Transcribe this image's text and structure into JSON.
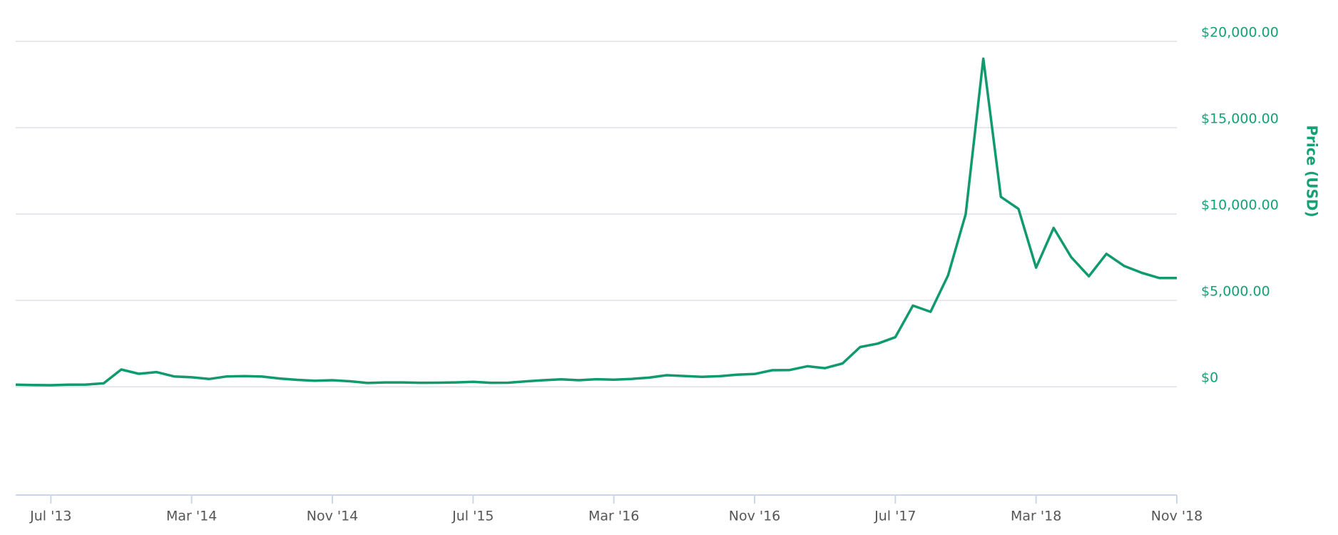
{
  "chart_data": {
    "type": "line",
    "y_axis_label": "Price (USD)",
    "color": "#109a6e",
    "grid": true,
    "y_axis_side": "right",
    "x": [
      "2013-05",
      "2013-06",
      "2013-07",
      "2013-08",
      "2013-09",
      "2013-10",
      "2013-11",
      "2013-12",
      "2014-01",
      "2014-02",
      "2014-03",
      "2014-04",
      "2014-05",
      "2014-06",
      "2014-07",
      "2014-08",
      "2014-09",
      "2014-10",
      "2014-11",
      "2014-12",
      "2015-01",
      "2015-02",
      "2015-03",
      "2015-04",
      "2015-05",
      "2015-06",
      "2015-07",
      "2015-08",
      "2015-09",
      "2015-10",
      "2015-11",
      "2015-12",
      "2016-01",
      "2016-02",
      "2016-03",
      "2016-04",
      "2016-05",
      "2016-06",
      "2016-07",
      "2016-08",
      "2016-09",
      "2016-10",
      "2016-11",
      "2016-12",
      "2017-01",
      "2017-02",
      "2017-03",
      "2017-04",
      "2017-05",
      "2017-06",
      "2017-07",
      "2017-08",
      "2017-09",
      "2017-10",
      "2017-11",
      "2017-12",
      "2018-01",
      "2018-02",
      "2018-03",
      "2018-04",
      "2018-05",
      "2018-06",
      "2018-07",
      "2018-08",
      "2018-09",
      "2018-10",
      "2018-11"
    ],
    "values": [
      120,
      100,
      90,
      120,
      130,
      200,
      1000,
      750,
      850,
      600,
      550,
      450,
      600,
      620,
      590,
      480,
      400,
      350,
      380,
      320,
      220,
      250,
      250,
      230,
      235,
      250,
      285,
      230,
      235,
      315,
      380,
      430,
      380,
      440,
      415,
      455,
      530,
      670,
      625,
      575,
      610,
      700,
      740,
      960,
      970,
      1190,
      1080,
      1350,
      2300,
      2500,
      2870,
      4700,
      4340,
      6450,
      10000,
      19000,
      11000,
      10300,
      6900,
      9200,
      7500,
      6400,
      7700,
      7000,
      6600,
      6300,
      6300
    ],
    "xlim": [
      "2013-05",
      "2018-11"
    ],
    "xticks": [
      {
        "value": "2013-07",
        "label": "Jul '13"
      },
      {
        "value": "2014-03",
        "label": "Mar '14"
      },
      {
        "value": "2014-11",
        "label": "Nov '14"
      },
      {
        "value": "2015-07",
        "label": "Jul '15"
      },
      {
        "value": "2016-03",
        "label": "Mar '16"
      },
      {
        "value": "2016-11",
        "label": "Nov '16"
      },
      {
        "value": "2017-07",
        "label": "Jul '17"
      },
      {
        "value": "2018-03",
        "label": "Mar '18"
      },
      {
        "value": "2018-11",
        "label": "Nov '18"
      }
    ],
    "ylim": [
      -6270,
      20000
    ],
    "yticks": [
      {
        "value": 0,
        "label": "$0"
      },
      {
        "value": 5000,
        "label": "$5,000.00"
      },
      {
        "value": 10000,
        "label": "$10,000.00"
      },
      {
        "value": 15000,
        "label": "$15,000.00"
      },
      {
        "value": 20000,
        "label": "$20,000.00"
      }
    ]
  }
}
